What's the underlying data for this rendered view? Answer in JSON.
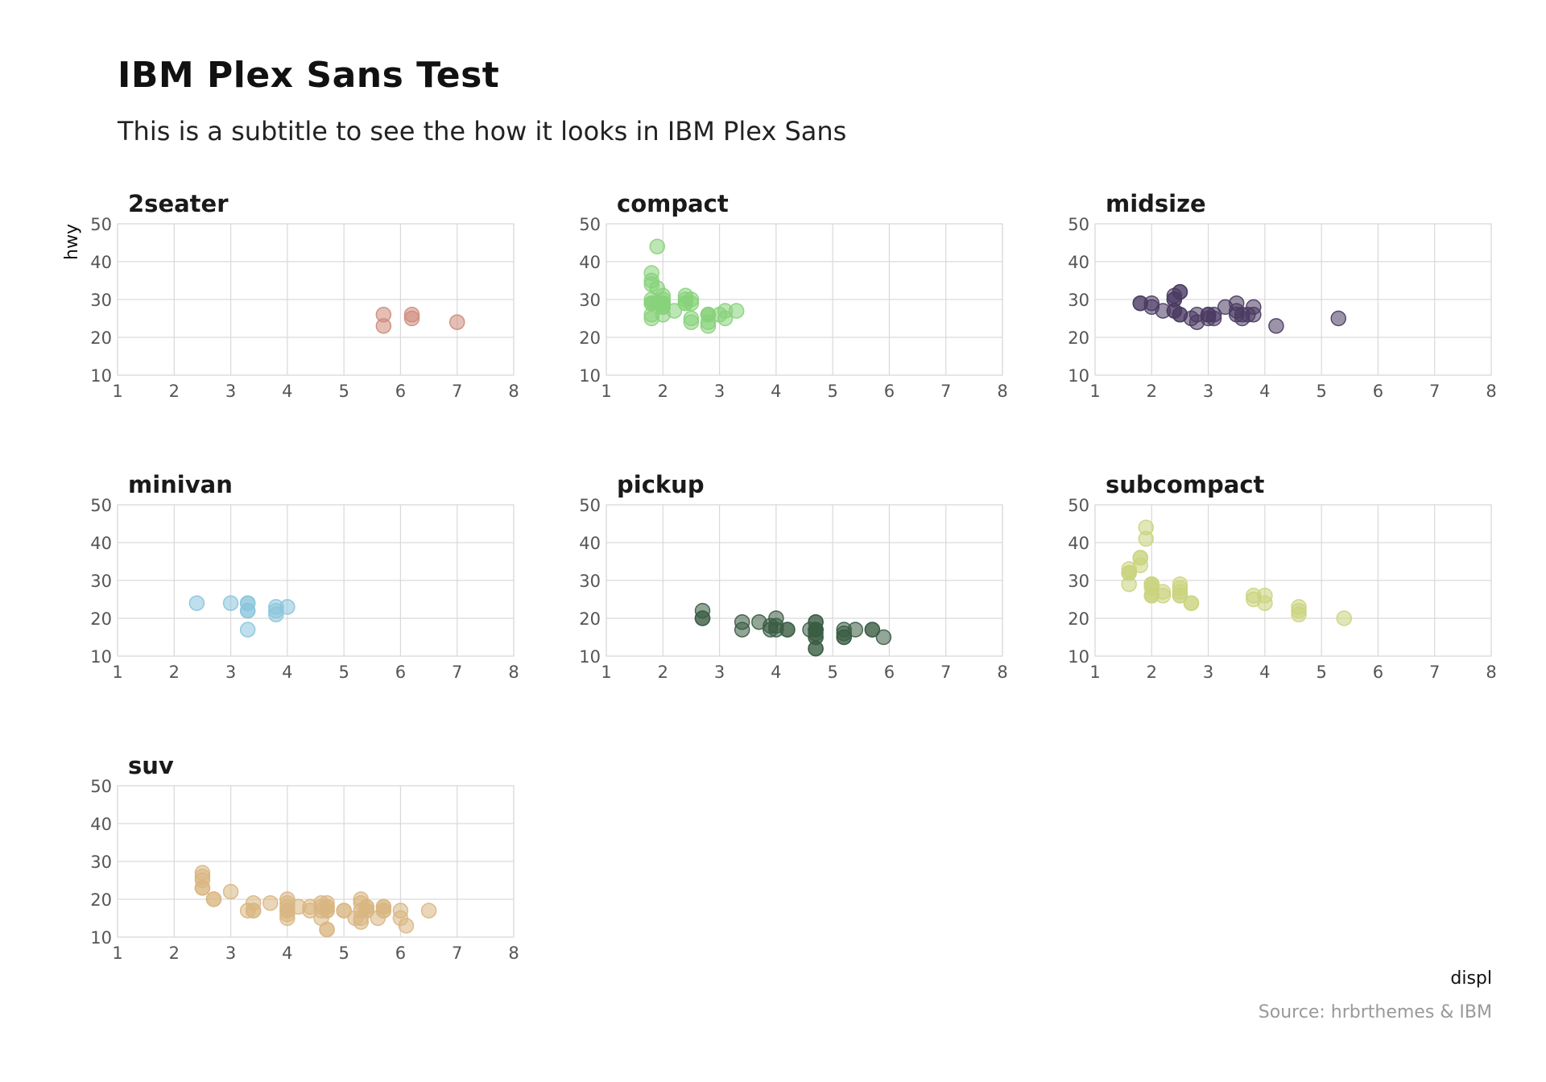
{
  "page": {
    "title": "IBM Plex Sans Test",
    "subtitle": "This is a subtitle to see the how it looks in IBM Plex Sans",
    "caption": "Source: hrbrthemes & IBM"
  },
  "chart_data": {
    "type": "scatter",
    "title": "IBM Plex Sans Test",
    "subtitle": "This is a subtitle to see the how it looks in IBM Plex Sans",
    "xlabel": "displ",
    "ylabel": "hwy",
    "xlim": [
      1,
      8
    ],
    "ylim": [
      10,
      50
    ],
    "xticks": [
      1,
      2,
      3,
      4,
      5,
      6,
      7,
      8
    ],
    "yticks": [
      10,
      20,
      30,
      40,
      50
    ],
    "grid": true,
    "facet_by": "class",
    "facets": [
      {
        "name": "2seater",
        "color": "#CE8B7A",
        "points": [
          [
            5.7,
            26
          ],
          [
            5.7,
            23
          ],
          [
            6.2,
            26
          ],
          [
            6.2,
            25
          ],
          [
            7.0,
            24
          ]
        ]
      },
      {
        "name": "compact",
        "color": "#87D27A",
        "points": [
          [
            1.8,
            29
          ],
          [
            1.8,
            29
          ],
          [
            2.0,
            31
          ],
          [
            2.0,
            30
          ],
          [
            2.8,
            26
          ],
          [
            2.8,
            26
          ],
          [
            3.1,
            27
          ],
          [
            1.8,
            26
          ],
          [
            1.8,
            25
          ],
          [
            2.0,
            28
          ],
          [
            2.0,
            29
          ],
          [
            2.8,
            26
          ],
          [
            3.1,
            25
          ],
          [
            1.8,
            29
          ],
          [
            2.0,
            29
          ],
          [
            2.0,
            28
          ],
          [
            1.8,
            34
          ],
          [
            1.9,
            44
          ],
          [
            2.0,
            29
          ],
          [
            2.0,
            26
          ],
          [
            2.4,
            29
          ],
          [
            2.4,
            30
          ],
          [
            2.5,
            30
          ],
          [
            2.5,
            29
          ],
          [
            3.3,
            27
          ],
          [
            1.8,
            37
          ],
          [
            1.8,
            35
          ],
          [
            2.0,
            29
          ],
          [
            2.4,
            29
          ],
          [
            2.4,
            31
          ],
          [
            2.5,
            24
          ],
          [
            2.5,
            25
          ],
          [
            2.8,
            23
          ],
          [
            2.8,
            24
          ],
          [
            3.0,
            26
          ],
          [
            1.9,
            29
          ],
          [
            1.8,
            30
          ],
          [
            2.2,
            27
          ],
          [
            2.0,
            28
          ],
          [
            1.9,
            33
          ]
        ]
      },
      {
        "name": "midsize",
        "color": "#4A3B62",
        "points": [
          [
            2.4,
            30
          ],
          [
            2.4,
            31
          ],
          [
            2.5,
            32
          ],
          [
            2.5,
            32
          ],
          [
            3.5,
            27
          ],
          [
            3.5,
            29
          ],
          [
            3.8,
            26
          ],
          [
            3.8,
            28
          ],
          [
            3.5,
            26
          ],
          [
            3.3,
            28
          ],
          [
            4.2,
            23
          ],
          [
            5.3,
            25
          ],
          [
            2.4,
            27
          ],
          [
            2.4,
            30
          ],
          [
            2.5,
            26
          ],
          [
            3.0,
            26
          ],
          [
            3.0,
            25
          ],
          [
            3.0,
            26
          ],
          [
            2.8,
            24
          ],
          [
            3.1,
            25
          ],
          [
            2.2,
            27
          ],
          [
            1.8,
            29
          ],
          [
            1.8,
            29
          ],
          [
            2.0,
            28
          ],
          [
            2.0,
            29
          ],
          [
            2.8,
            26
          ],
          [
            3.1,
            26
          ],
          [
            3.6,
            25
          ],
          [
            3.6,
            26
          ],
          [
            3.7,
            26
          ],
          [
            2.5,
            26
          ],
          [
            2.4,
            27
          ],
          [
            2.7,
            25
          ]
        ]
      },
      {
        "name": "minivan",
        "color": "#8AC4DC",
        "points": [
          [
            2.4,
            24
          ],
          [
            3.0,
            24
          ],
          [
            3.3,
            22
          ],
          [
            3.3,
            22
          ],
          [
            3.3,
            24
          ],
          [
            3.3,
            24
          ],
          [
            3.3,
            17
          ],
          [
            3.8,
            22
          ],
          [
            3.8,
            21
          ],
          [
            3.8,
            23
          ],
          [
            4.0,
            23
          ]
        ]
      },
      {
        "name": "pickup",
        "color": "#3A5C44",
        "points": [
          [
            2.7,
            20
          ],
          [
            2.7,
            20
          ],
          [
            2.7,
            22
          ],
          [
            3.4,
            17
          ],
          [
            3.4,
            19
          ],
          [
            4.0,
            18
          ],
          [
            4.0,
            20
          ],
          [
            4.7,
            15
          ],
          [
            4.7,
            15
          ],
          [
            4.7,
            19
          ],
          [
            4.7,
            17
          ],
          [
            4.7,
            17
          ],
          [
            4.7,
            12
          ],
          [
            5.2,
            17
          ],
          [
            5.2,
            15
          ],
          [
            5.7,
            17
          ],
          [
            5.9,
            15
          ],
          [
            4.7,
            17
          ],
          [
            4.7,
            19
          ],
          [
            4.7,
            12
          ],
          [
            5.2,
            16
          ],
          [
            5.4,
            17
          ],
          [
            3.7,
            19
          ],
          [
            3.9,
            17
          ],
          [
            4.2,
            17
          ],
          [
            4.7,
            16
          ],
          [
            4.7,
            17
          ],
          [
            5.2,
            15
          ],
          [
            5.7,
            17
          ],
          [
            3.9,
            18
          ],
          [
            4.6,
            17
          ],
          [
            4.0,
            17
          ],
          [
            4.2,
            17
          ]
        ]
      },
      {
        "name": "subcompact",
        "color": "#CBD47E",
        "points": [
          [
            1.6,
            33
          ],
          [
            1.6,
            32
          ],
          [
            1.6,
            32
          ],
          [
            1.6,
            29
          ],
          [
            1.6,
            32
          ],
          [
            1.8,
            34
          ],
          [
            1.8,
            36
          ],
          [
            1.8,
            36
          ],
          [
            2.0,
            29
          ],
          [
            2.0,
            26
          ],
          [
            1.9,
            44
          ],
          [
            1.9,
            41
          ],
          [
            2.0,
            29
          ],
          [
            2.0,
            26
          ],
          [
            2.2,
            27
          ],
          [
            2.5,
            28
          ],
          [
            2.5,
            29
          ],
          [
            2.7,
            24
          ],
          [
            2.7,
            24
          ],
          [
            2.0,
            26
          ],
          [
            2.0,
            29
          ],
          [
            2.5,
            26
          ],
          [
            3.8,
            25
          ],
          [
            3.8,
            26
          ],
          [
            4.0,
            26
          ],
          [
            4.0,
            24
          ],
          [
            4.6,
            21
          ],
          [
            4.6,
            22
          ],
          [
            4.6,
            23
          ],
          [
            5.4,
            20
          ],
          [
            2.5,
            26
          ],
          [
            2.5,
            27
          ],
          [
            2.0,
            28
          ],
          [
            2.2,
            26
          ]
        ]
      },
      {
        "name": "suv",
        "color": "#D9B681",
        "points": [
          [
            2.5,
            23
          ],
          [
            2.5,
            23
          ],
          [
            2.5,
            25
          ],
          [
            2.5,
            26
          ],
          [
            2.5,
            27
          ],
          [
            2.7,
            20
          ],
          [
            2.7,
            20
          ],
          [
            3.0,
            22
          ],
          [
            3.3,
            17
          ],
          [
            3.4,
            17
          ],
          [
            3.4,
            19
          ],
          [
            3.7,
            19
          ],
          [
            4.0,
            17
          ],
          [
            4.0,
            19
          ],
          [
            4.0,
            20
          ],
          [
            4.0,
            15
          ],
          [
            4.0,
            17
          ],
          [
            4.0,
            18
          ],
          [
            4.2,
            18
          ],
          [
            4.4,
            17
          ],
          [
            4.6,
            19
          ],
          [
            4.6,
            17
          ],
          [
            4.6,
            15
          ],
          [
            4.7,
            12
          ],
          [
            4.7,
            12
          ],
          [
            4.7,
            17
          ],
          [
            4.7,
            19
          ],
          [
            4.7,
            18
          ],
          [
            5.0,
            17
          ],
          [
            5.3,
            19
          ],
          [
            5.3,
            20
          ],
          [
            5.3,
            14
          ],
          [
            5.3,
            15
          ],
          [
            5.3,
            17
          ],
          [
            5.4,
            17
          ],
          [
            5.4,
            18
          ],
          [
            5.4,
            18
          ],
          [
            5.6,
            15
          ],
          [
            5.7,
            17
          ],
          [
            5.7,
            18
          ],
          [
            5.7,
            17
          ],
          [
            6.0,
            15
          ],
          [
            6.1,
            13
          ],
          [
            6.5,
            17
          ],
          [
            6.0,
            17
          ],
          [
            4.4,
            18
          ],
          [
            4.6,
            18
          ],
          [
            5.0,
            17
          ],
          [
            5.2,
            15
          ],
          [
            5.4,
            17
          ],
          [
            5.7,
            18
          ],
          [
            3.4,
            17
          ],
          [
            4.0,
            16
          ],
          [
            4.7,
            18
          ],
          [
            4.7,
            17
          ]
        ]
      }
    ]
  }
}
